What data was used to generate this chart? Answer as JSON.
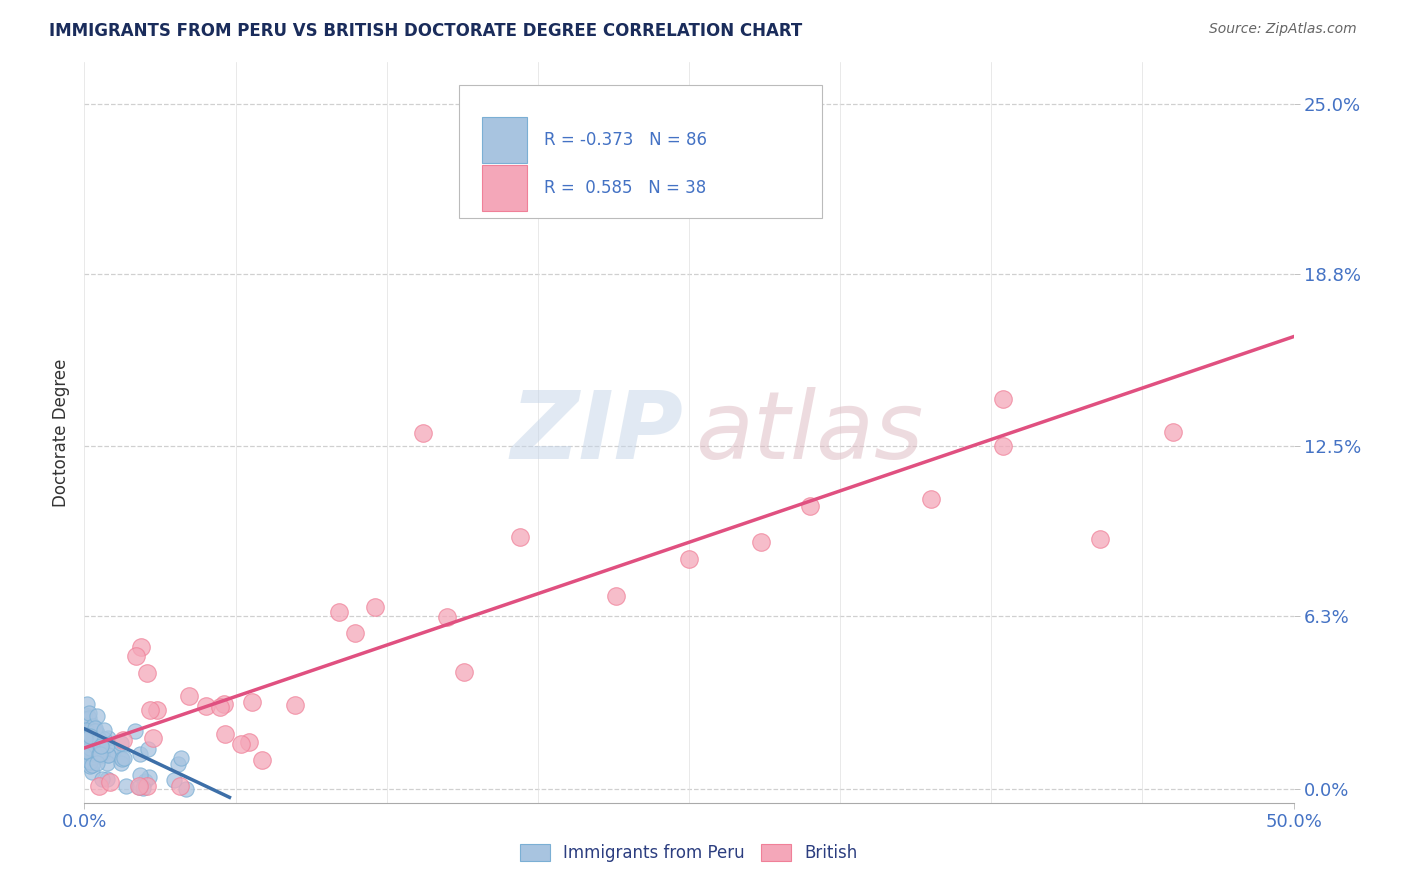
{
  "title": "IMMIGRANTS FROM PERU VS BRITISH DOCTORATE DEGREE CORRELATION CHART",
  "source": "Source: ZipAtlas.com",
  "ylabel_label": "Doctorate Degree",
  "y_tick_labels": [
    "0.0%",
    "6.3%",
    "12.5%",
    "18.8%",
    "25.0%"
  ],
  "y_tick_values": [
    0.0,
    6.3,
    12.5,
    18.8,
    25.0
  ],
  "x_tick_labels": [
    "0.0%",
    "50.0%"
  ],
  "x_min": 0.0,
  "x_max": 50.0,
  "y_min": -0.5,
  "y_max": 26.5,
  "legend_label_1": "Immigrants from Peru",
  "legend_label_2": "British",
  "R1": -0.373,
  "N1": 86,
  "R2": 0.585,
  "N2": 38,
  "color_blue": "#a8c4e0",
  "color_pink": "#f4a7b9",
  "color_blue_edge": "#7bafd4",
  "color_pink_edge": "#f08098",
  "color_line_blue": "#3d6fa8",
  "color_line_pink": "#e05080",
  "title_color": "#1a2c5b",
  "axis_label_color": "#2c3e80",
  "tick_color": "#4472c4",
  "source_color": "#666666",
  "watermark_zip": "#c5d5e8",
  "watermark_atlas": "#ddb8c0",
  "background_color": "#ffffff",
  "grid_color": "#d0d0d0",
  "peru_line_x": [
    0.0,
    6.0
  ],
  "peru_line_y": [
    2.2,
    -0.3
  ],
  "british_line_x": [
    0.0,
    50.0
  ],
  "british_line_y": [
    1.5,
    16.5
  ]
}
